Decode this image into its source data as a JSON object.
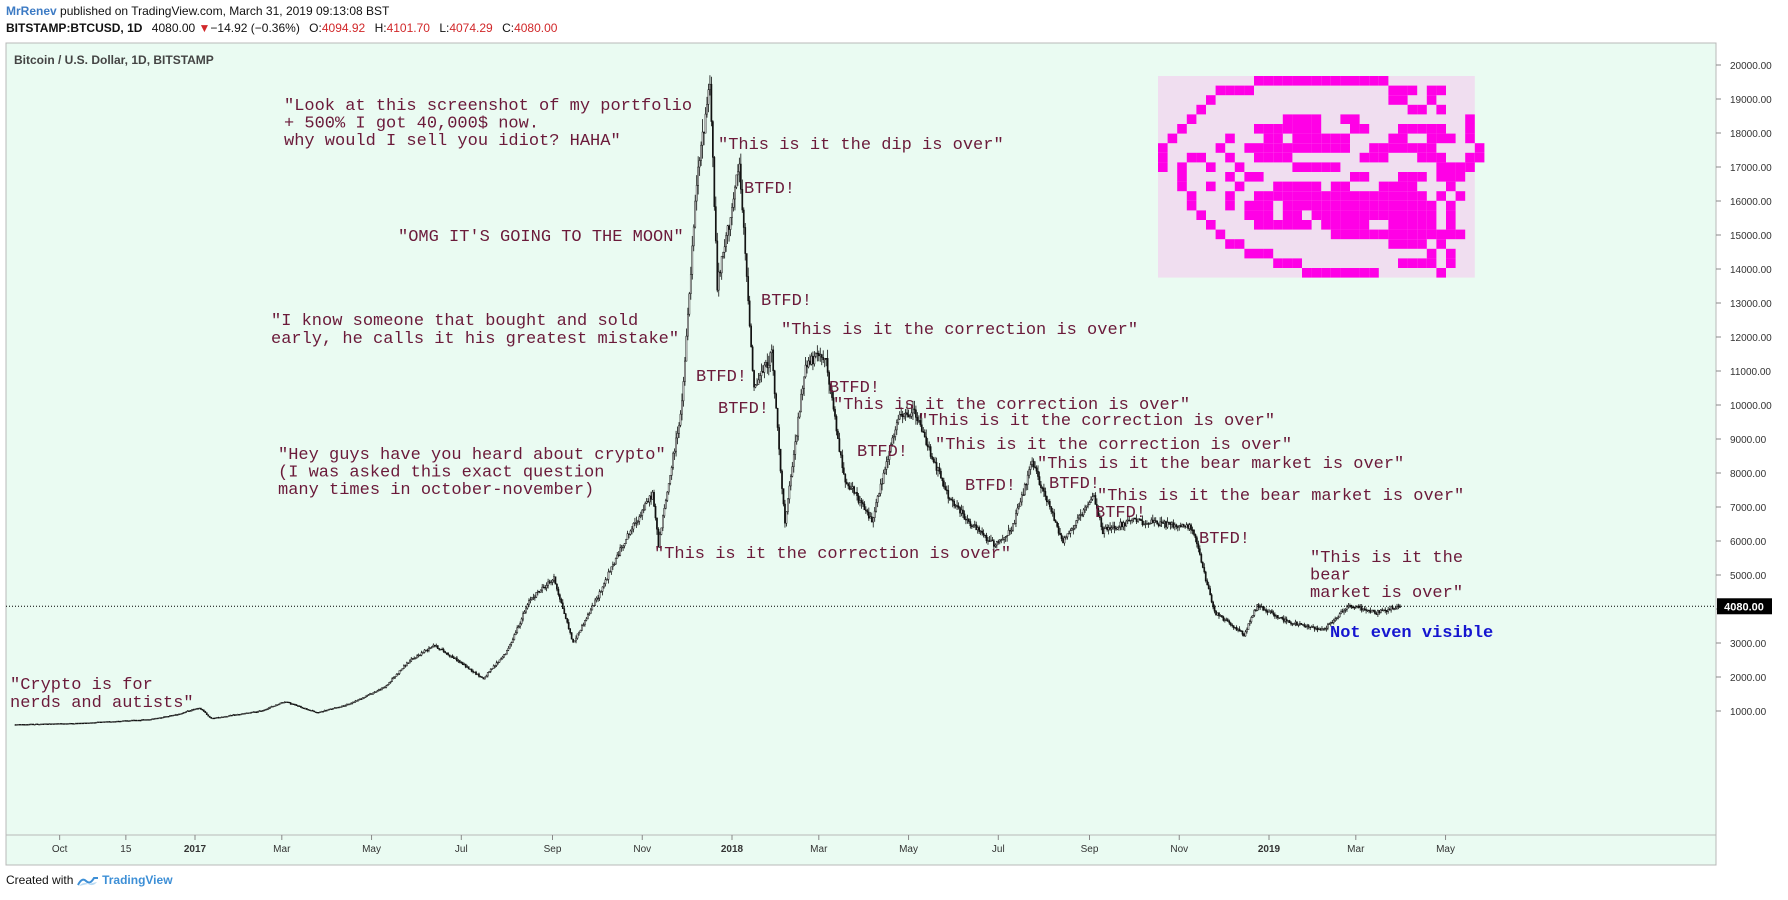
{
  "header": {
    "author": "MrRenev",
    "published_text": "published on TradingView.com, March 31, 2019 09:13:08 BST",
    "symbol": "BITSTAMP:BTCUSD, 1D",
    "last": "4080.00",
    "change_arrow": "▼",
    "change": "−14.92 (−0.36%)",
    "o_label": "O:",
    "o_value": "4094.92",
    "h_label": "H:",
    "h_value": "4101.70",
    "l_label": "L:",
    "l_value": "4074.29",
    "c_label": "C:",
    "c_value": "4080.00"
  },
  "footer": {
    "created_with": "Created with",
    "brand": "TradingView"
  },
  "colors": {
    "plot_bg": "#eafbf2",
    "candle": "#111111",
    "annotation": "#6b1a3a",
    "blue_annotation": "#1515d0",
    "troll_magenta": "#ff00e6",
    "troll_light": "#f4c6ee"
  },
  "chart_data": {
    "type": "candlestick",
    "title": "Bitcoin / U.S. Dollar, 1D, BITSTAMP",
    "y_ticks": [
      "20000.00",
      "19000.00",
      "18000.00",
      "17000.00",
      "16000.00",
      "15000.00",
      "14000.00",
      "13000.00",
      "12000.00",
      "11000.00",
      "10000.00",
      "9000.00",
      "8000.00",
      "7000.00",
      "6000.00",
      "5000.00",
      "4000.00",
      "3000.00",
      "2000.00",
      "1000.00"
    ],
    "ylim": [
      0,
      20350
    ],
    "last_price_label": "4080.00",
    "last_price": 4080,
    "x_ticks": [
      {
        "label": "Oct",
        "date": "2016-10-01",
        "bold": false
      },
      {
        "label": "15",
        "date": "2016-11-15",
        "bold": false
      },
      {
        "label": "2017",
        "date": "2017-01-01",
        "bold": true
      },
      {
        "label": "Mar",
        "date": "2017-03-01",
        "bold": false
      },
      {
        "label": "May",
        "date": "2017-05-01",
        "bold": false
      },
      {
        "label": "Jul",
        "date": "2017-07-01",
        "bold": false
      },
      {
        "label": "Sep",
        "date": "2017-09-01",
        "bold": false
      },
      {
        "label": "Nov",
        "date": "2017-11-01",
        "bold": false
      },
      {
        "label": "2018",
        "date": "2018-01-01",
        "bold": true
      },
      {
        "label": "Mar",
        "date": "2018-03-01",
        "bold": false
      },
      {
        "label": "May",
        "date": "2018-05-01",
        "bold": false
      },
      {
        "label": "Jul",
        "date": "2018-07-01",
        "bold": false
      },
      {
        "label": "Sep",
        "date": "2018-09-01",
        "bold": false
      },
      {
        "label": "Nov",
        "date": "2018-11-01",
        "bold": false
      },
      {
        "label": "2019",
        "date": "2019-01-01",
        "bold": true
      },
      {
        "label": "Mar",
        "date": "2019-03-01",
        "bold": false
      },
      {
        "label": "May",
        "date": "2019-05-01",
        "bold": false
      }
    ],
    "x_range": [
      "2016-09-01",
      "2019-06-30"
    ],
    "price_path": [
      [
        "2016-09-01",
        600
      ],
      [
        "2016-10-15",
        640
      ],
      [
        "2016-12-01",
        750
      ],
      [
        "2016-12-20",
        900
      ],
      [
        "2017-01-04",
        1100
      ],
      [
        "2017-01-12",
        780
      ],
      [
        "2017-02-15",
        1000
      ],
      [
        "2017-03-03",
        1280
      ],
      [
        "2017-03-25",
        950
      ],
      [
        "2017-04-15",
        1190
      ],
      [
        "2017-05-10",
        1700
      ],
      [
        "2017-05-25",
        2400
      ],
      [
        "2017-06-12",
        2950
      ],
      [
        "2017-06-28",
        2500
      ],
      [
        "2017-07-16",
        1950
      ],
      [
        "2017-08-01",
        2750
      ],
      [
        "2017-08-17",
        4300
      ],
      [
        "2017-09-02",
        4900
      ],
      [
        "2017-09-15",
        3000
      ],
      [
        "2017-10-01",
        4300
      ],
      [
        "2017-10-20",
        6000
      ],
      [
        "2017-11-08",
        7400
      ],
      [
        "2017-11-12",
        5900
      ],
      [
        "2017-11-28",
        10000
      ],
      [
        "2017-12-08",
        16500
      ],
      [
        "2017-12-17",
        19600
      ],
      [
        "2017-12-22",
        13500
      ],
      [
        "2018-01-06",
        17000
      ],
      [
        "2018-01-16",
        10500
      ],
      [
        "2018-01-28",
        11500
      ],
      [
        "2018-02-06",
        6500
      ],
      [
        "2018-02-20",
        11200
      ],
      [
        "2018-03-05",
        11500
      ],
      [
        "2018-03-18",
        7900
      ],
      [
        "2018-04-06",
        6600
      ],
      [
        "2018-04-24",
        9600
      ],
      [
        "2018-05-05",
        9800
      ],
      [
        "2018-05-28",
        7300
      ],
      [
        "2018-06-12",
        6500
      ],
      [
        "2018-06-28",
        5900
      ],
      [
        "2018-07-10",
        6300
      ],
      [
        "2018-07-24",
        8300
      ],
      [
        "2018-08-14",
        6000
      ],
      [
        "2018-08-24",
        6600
      ],
      [
        "2018-09-04",
        7300
      ],
      [
        "2018-09-10",
        6300
      ],
      [
        "2018-10-01",
        6600
      ],
      [
        "2018-11-10",
        6400
      ],
      [
        "2018-11-20",
        4700
      ],
      [
        "2018-11-25",
        3900
      ],
      [
        "2018-12-15",
        3250
      ],
      [
        "2018-12-24",
        4100
      ],
      [
        "2019-01-15",
        3600
      ],
      [
        "2019-02-07",
        3400
      ],
      [
        "2019-02-24",
        4100
      ],
      [
        "2019-03-15",
        3900
      ],
      [
        "2019-03-31",
        4080
      ]
    ]
  },
  "annotations": {
    "a_portfolio": [
      "\"Look at this screenshot of my portfolio",
      "+ 500% I got 40,000$ now.",
      "why would I sell you idiot? HAHA\""
    ],
    "a_dip": [
      "\"This is it the dip is over\""
    ],
    "a_moon": [
      "\"OMG IT'S GOING TO THE MOON\""
    ],
    "a_know": [
      "\"I know someone that bought and sold",
      "early, he calls it his greatest mistake\""
    ],
    "a_corr1": [
      "\"This is it the correction is over\""
    ],
    "a_corr2": [
      "\"This is it the correction is over\""
    ],
    "a_corr3": [
      "\"This is it the correction is over\""
    ],
    "a_corr4": [
      "\"This is it the correction is over\""
    ],
    "a_corr5": [
      "\"This is it the correction is over\""
    ],
    "a_bear1": [
      "\"This is it the bear market is over\""
    ],
    "a_bear2": [
      "\"This is it the bear market is over\""
    ],
    "a_bear3": [
      "\"This is it the",
      "bear",
      "market is over\""
    ],
    "a_hey": [
      "\"Hey guys have you heard about crypto\"",
      "(I was asked this exact question",
      "many times in october-november)"
    ],
    "a_nerds": [
      "\"Crypto is for",
      "nerds and autists\""
    ],
    "a_visible": [
      "Not even visible"
    ],
    "btfd": "BTFD!"
  }
}
